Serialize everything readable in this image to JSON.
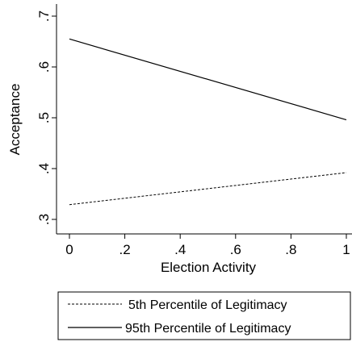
{
  "chart_data": {
    "type": "line",
    "xlabel": "Election Activity",
    "ylabel": "Acceptance",
    "xlim": [
      0,
      1
    ],
    "ylim": [
      0.3,
      0.7
    ],
    "x_ticks": [
      0,
      0.2,
      0.4,
      0.6,
      0.8,
      1
    ],
    "x_tick_labels": [
      "0",
      ".2",
      ".4",
      ".6",
      ".8",
      "1"
    ],
    "y_ticks": [
      0.3,
      0.4,
      0.5,
      0.6,
      0.7
    ],
    "y_tick_labels": [
      ".3",
      ".4",
      ".5",
      ".6",
      ".7"
    ],
    "grid": false,
    "legend_position": "bottom",
    "series": [
      {
        "name": "5th Percentile of Legitimacy",
        "style": "dashed",
        "color": "#000000",
        "x": [
          0,
          1
        ],
        "y": [
          0.329,
          0.392
        ]
      },
      {
        "name": "95th Percentile of Legitimacy",
        "style": "solid",
        "color": "#000000",
        "x": [
          0,
          1
        ],
        "y": [
          0.655,
          0.496
        ]
      }
    ]
  }
}
